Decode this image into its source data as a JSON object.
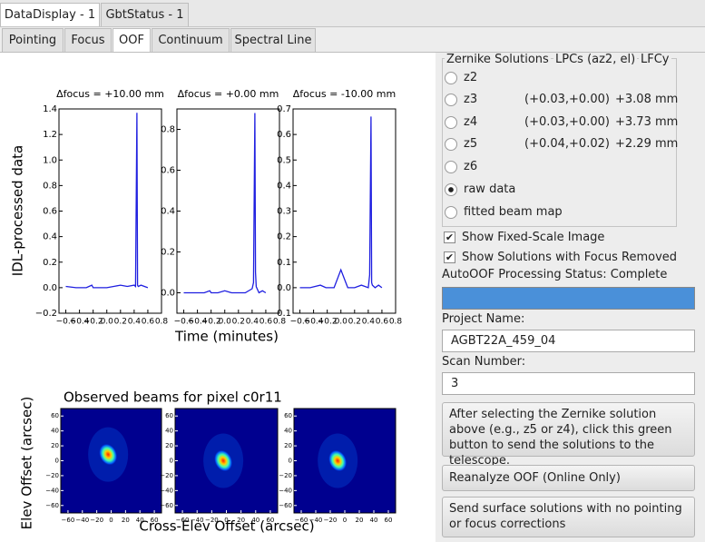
{
  "window_tabs": [
    "DataDisplay - 1",
    "GbtStatus - 1"
  ],
  "window_tab_selected": 0,
  "tabs": [
    "Pointing",
    "Focus",
    "OOF",
    "Continuum",
    "Spectral Line"
  ],
  "tab_selected": 2,
  "plot_ylabel": "IDL-processed data",
  "plot_xlabel": "Time (minutes)",
  "plots": [
    {
      "type": "line",
      "title": "Δfocus = +10.00 mm",
      "color": "#1f1fe0",
      "x": [
        -0.6,
        -0.45,
        -0.3,
        -0.22,
        -0.2,
        -0.1,
        0.0,
        0.1,
        0.2,
        0.3,
        0.4,
        0.42,
        0.44,
        0.45,
        0.46,
        0.5,
        0.55,
        0.6
      ],
      "values": [
        0.01,
        0.0,
        0.0,
        0.02,
        0.0,
        0.0,
        0.0,
        0.01,
        0.02,
        0.01,
        0.02,
        0.01,
        1.37,
        0.02,
        0.01,
        0.02,
        0.01,
        0.0
      ],
      "xlim": [
        -0.7,
        0.8
      ],
      "ylim": [
        -0.2,
        1.4
      ],
      "xticks": [
        {
          "value": -0.6,
          "label": "−0.6"
        },
        {
          "value": -0.4,
          "label": "−0.4"
        },
        {
          "value": -0.2,
          "label": "−0.2"
        },
        {
          "value": 0,
          "label": "0.0"
        },
        0.2,
        0.4,
        0.6,
        0.8
      ],
      "yticks": [
        {
          "value": -0.2,
          "label": "−0.2"
        },
        {
          "value": 0,
          "label": "0.0"
        },
        0.2,
        0.4,
        0.6,
        0.8,
        {
          "value": 1,
          "label": "1.0"
        },
        1.2,
        1.4
      ]
    },
    {
      "type": "line",
      "title": "Δfocus = +0.00 mm",
      "color": "#1f1fe0",
      "x": [
        -0.6,
        -0.45,
        -0.3,
        -0.22,
        -0.2,
        -0.1,
        0.0,
        0.1,
        0.2,
        0.3,
        0.4,
        0.42,
        0.44,
        0.45,
        0.46,
        0.5,
        0.55,
        0.6
      ],
      "values": [
        0.0,
        0.0,
        0.0,
        0.01,
        0.0,
        0.0,
        0.01,
        0.0,
        0.0,
        0.0,
        0.02,
        0.05,
        0.88,
        0.1,
        0.03,
        0.0,
        0.01,
        0.0
      ],
      "xlim": [
        -0.7,
        0.8
      ],
      "ylim": [
        -0.1,
        0.9
      ],
      "xticks": [
        {
          "value": -0.6,
          "label": "−0.6"
        },
        {
          "value": -0.4,
          "label": "−0.4"
        },
        {
          "value": -0.2,
          "label": "−0.2"
        },
        {
          "value": 0,
          "label": "0.0"
        },
        0.2,
        0.4,
        0.6,
        0.8
      ],
      "yticks": [
        {
          "value": 0,
          "label": "0.0"
        },
        0.2,
        0.4,
        0.6,
        0.8
      ]
    },
    {
      "type": "line",
      "title": "Δfocus = -10.00 mm",
      "color": "#1f1fe0",
      "x": [
        -0.6,
        -0.45,
        -0.3,
        -0.22,
        -0.2,
        -0.1,
        0.0,
        0.1,
        0.2,
        0.3,
        0.4,
        0.42,
        0.44,
        0.45,
        0.46,
        0.5,
        0.55,
        0.6
      ],
      "values": [
        0.0,
        0.0,
        0.01,
        0.0,
        0.0,
        0.0,
        0.07,
        0.0,
        0.0,
        0.01,
        0.0,
        0.05,
        0.67,
        0.02,
        0.01,
        0.0,
        0.01,
        0.0
      ],
      "xlim": [
        -0.7,
        0.8
      ],
      "ylim": [
        -0.1,
        0.7
      ],
      "xticks": [
        {
          "value": -0.6,
          "label": "−0.6"
        },
        {
          "value": -0.4,
          "label": "−0.4"
        },
        {
          "value": -0.2,
          "label": "−0.2"
        },
        {
          "value": 0,
          "label": "0.0"
        },
        0.2,
        0.4,
        0.6,
        0.8
      ],
      "yticks": [
        {
          "value": -0.1,
          "label": "−0.1"
        },
        {
          "value": 0,
          "label": "0.0"
        },
        0.1,
        0.2,
        0.3,
        0.4,
        0.5,
        0.6,
        0.7
      ]
    }
  ],
  "beams": {
    "title": "Observed beams for pixel c0r11",
    "ylabel": "Elev Offset (arcsec)",
    "xlabel": "Cross-Elev Offset (arcsec)",
    "count": 3,
    "xlim": [
      -70,
      70
    ],
    "ylim": [
      -70,
      70
    ],
    "xticks": [
      {
        "value": -60,
        "label": "−60"
      },
      {
        "value": -40,
        "label": "−40"
      },
      {
        "value": -20,
        "label": "−20"
      },
      0,
      20,
      40,
      60
    ],
    "yticks": [
      {
        "value": -60,
        "label": "−60"
      },
      {
        "value": -40,
        "label": "−40"
      },
      {
        "value": -20,
        "label": "−20"
      },
      0,
      20,
      40,
      60
    ]
  },
  "zernike": {
    "headers": [
      "Zernike Solutions",
      "LPCs (az2, el)",
      "LFCy"
    ],
    "rows": [
      {
        "label": "z2"
      },
      {
        "label": "z3",
        "lpc": "(+0.03,+0.00)",
        "lfcy": "+3.08 mm"
      },
      {
        "label": "z4",
        "lpc": "(+0.03,+0.00)",
        "lfcy": "+3.73 mm"
      },
      {
        "label": "z5",
        "lpc": "(+0.04,+0.02)",
        "lfcy": "+2.29 mm"
      },
      {
        "label": "z6"
      },
      {
        "label": "raw data"
      },
      {
        "label": "fitted beam map"
      }
    ],
    "selected": 5
  },
  "checkboxes": [
    {
      "label": "Show Fixed-Scale Image",
      "checked": true
    },
    {
      "label": "Show Solutions with Focus Removed",
      "checked": true
    }
  ],
  "status": "AutoOOF Processing Status: Complete",
  "project_label": "Project Name:",
  "project_value": "AGBT22A_459_04",
  "scan_label": "Scan Number:",
  "scan_value": "3",
  "buttons": [
    "After selecting the Zernike solution above (e.g., z5 or z4), click this green button to send the solutions to the telescope.",
    "Reanalyze OOF (Online Only)",
    "Send surface solutions with no pointing or focus corrections"
  ]
}
